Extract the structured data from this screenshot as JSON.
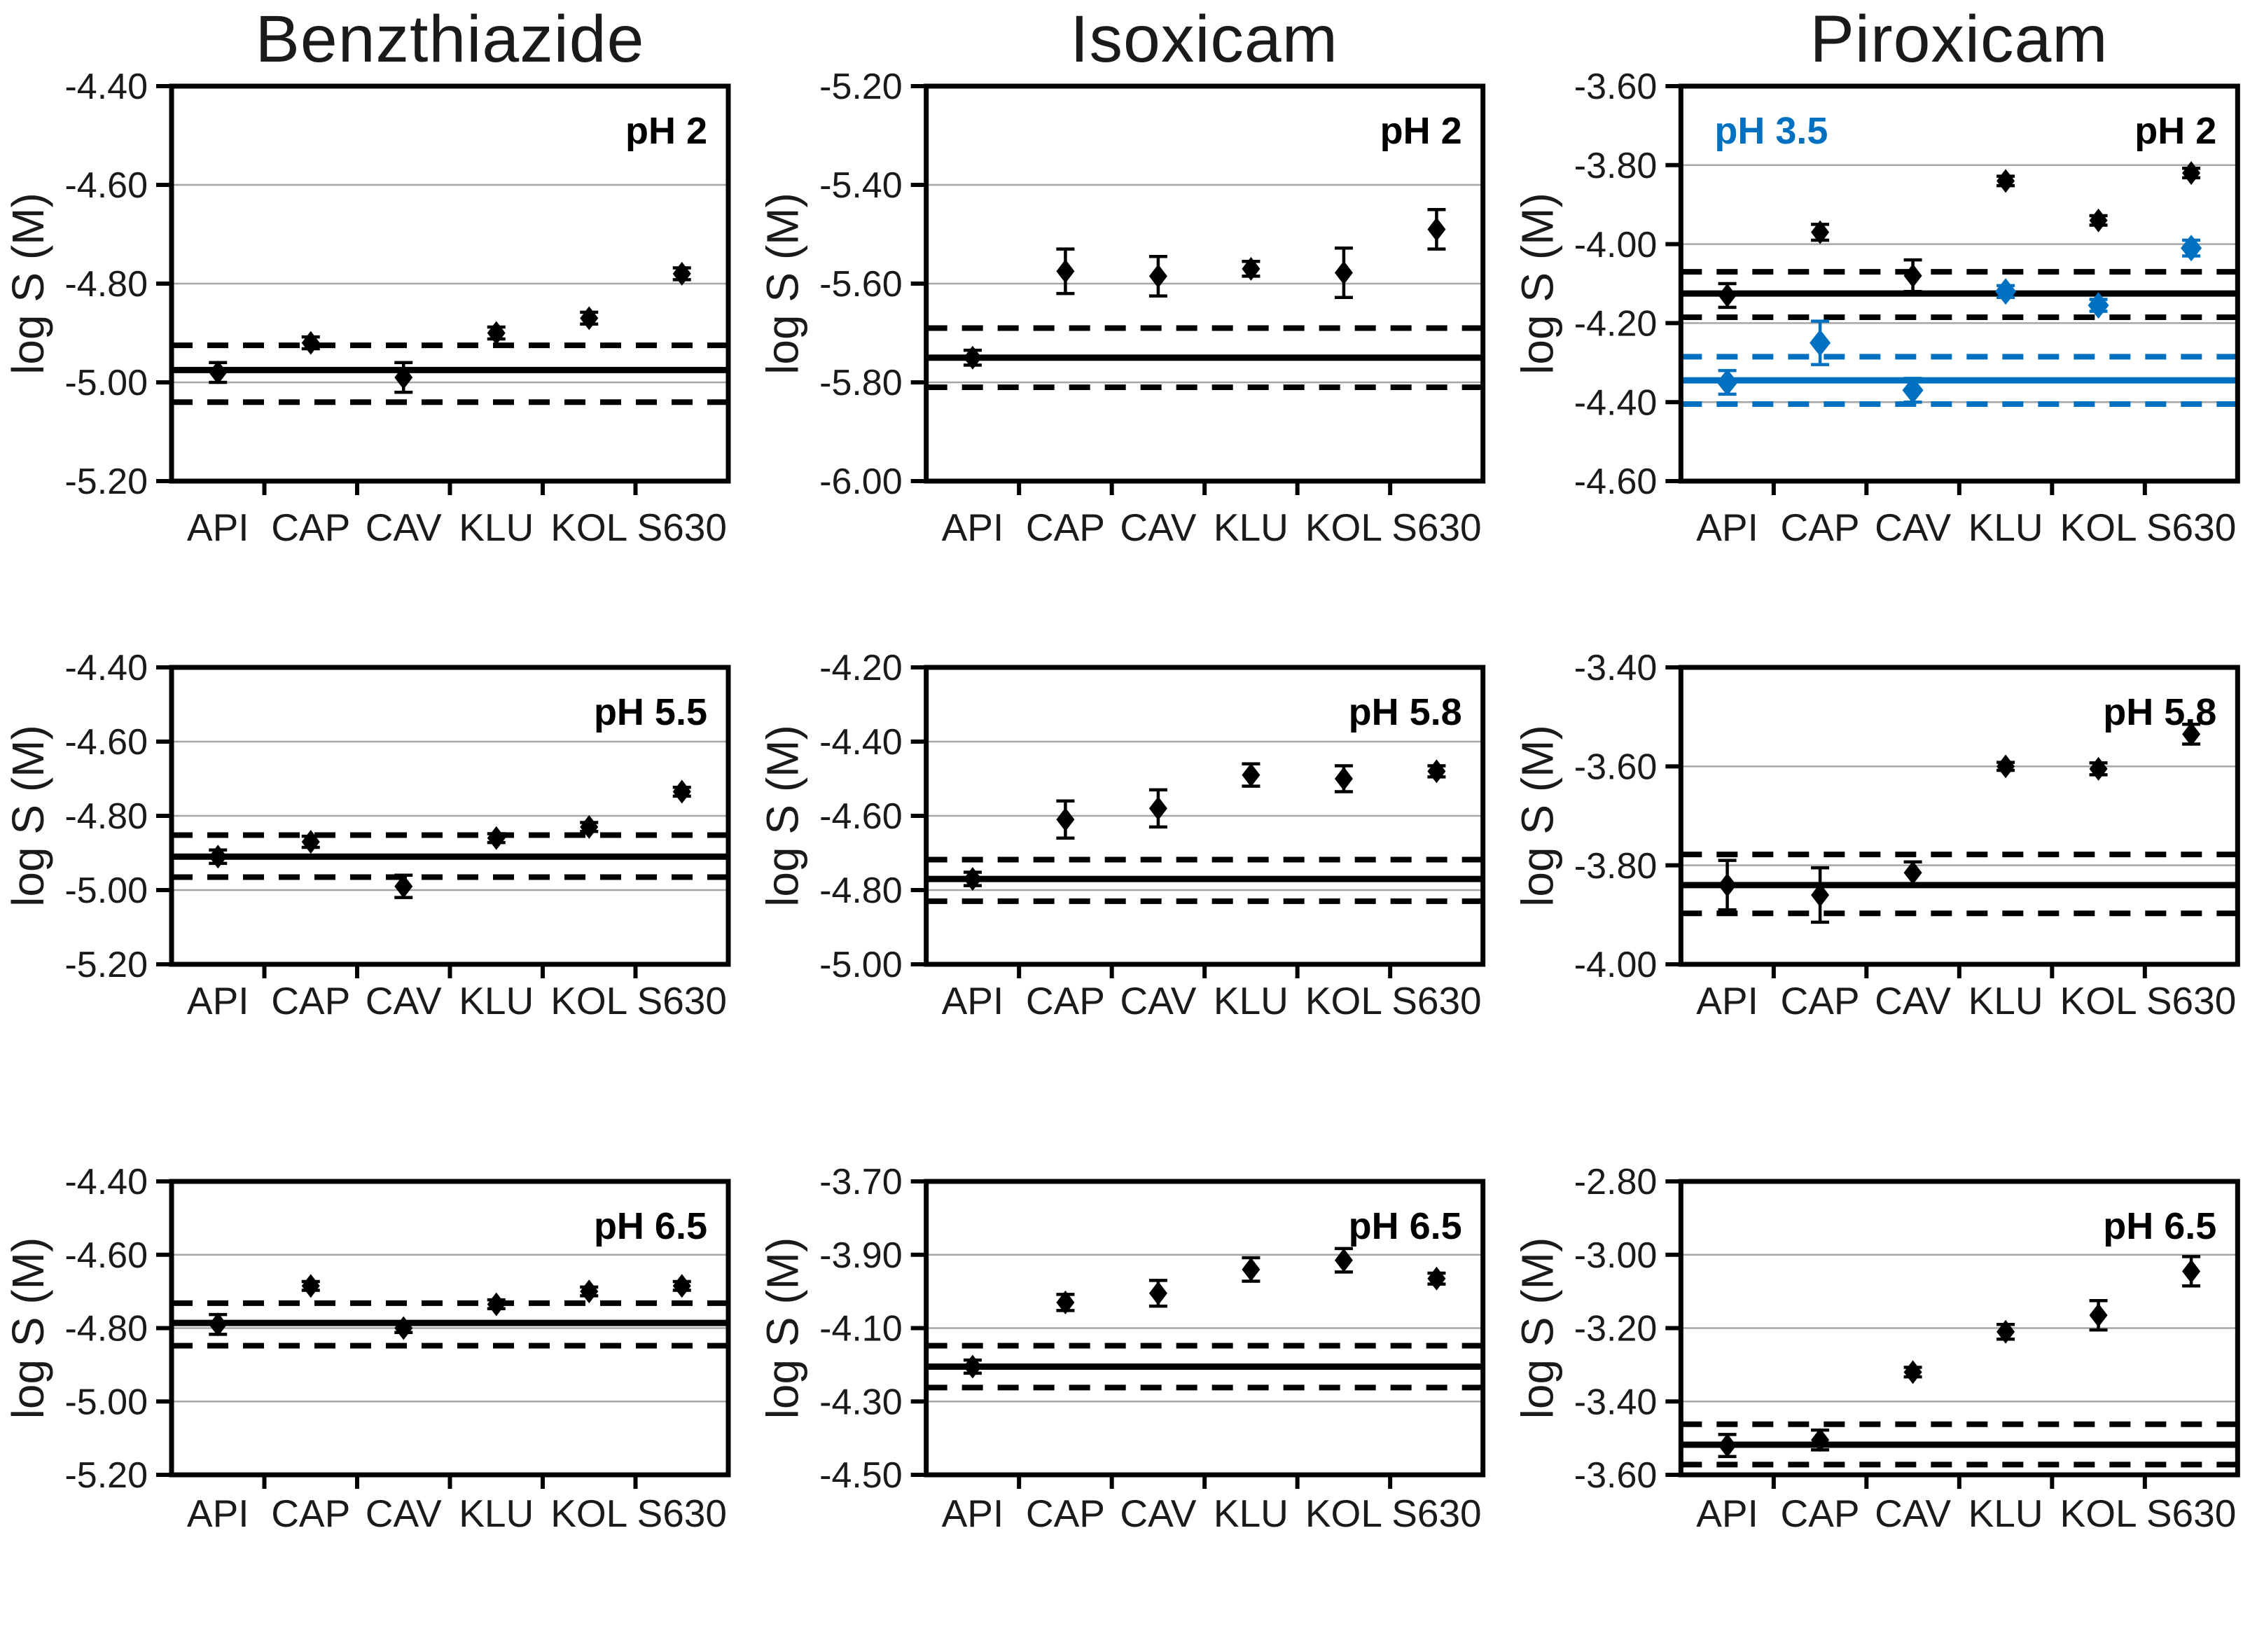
{
  "figure": {
    "description": "3x3 grid of equilibrium solubility scatter plots",
    "background": "#ffffff"
  },
  "columns": [
    "Benzthiazide",
    "Isoxicam",
    "Piroxicam"
  ],
  "ylabel": "log S (M)",
  "categories": [
    "API",
    "CAP",
    "CAV",
    "KLU",
    "KOL",
    "S630"
  ],
  "colors": {
    "black": "#000000",
    "blue": "#0070C0",
    "grid": "#a6a6a6",
    "frame": "#000000"
  },
  "chart_data": [
    {
      "id": "benzthiazide-ph2",
      "type": "scatter",
      "col": 0,
      "row": 0,
      "title": "Benzthiazide",
      "ylabel": "log S (M)",
      "ylim": [
        -5.2,
        -4.4
      ],
      "yticks": [
        -4.4,
        -4.6,
        -4.8,
        -5.0,
        -5.2
      ],
      "categories": [
        "API",
        "CAP",
        "CAV",
        "KLU",
        "KOL",
        "S630"
      ],
      "ph_labels": [
        {
          "text": "pH 2",
          "color": "#000000",
          "position": "top-right"
        }
      ],
      "series": [
        {
          "name": "pH 2",
          "color": "#000000",
          "values": [
            -4.98,
            -4.92,
            -4.99,
            -4.9,
            -4.87,
            -4.78
          ],
          "errors": [
            0.02,
            0.012,
            0.03,
            0.012,
            0.012,
            0.012
          ],
          "ref_solid": -4.975,
          "ref_dashed": [
            -4.925,
            -5.04
          ]
        }
      ]
    },
    {
      "id": "isoxicam-ph2",
      "type": "scatter",
      "col": 1,
      "row": 0,
      "title": "Isoxicam",
      "ylabel": "log S (M)",
      "ylim": [
        -6.0,
        -5.2
      ],
      "yticks": [
        -5.2,
        -5.4,
        -5.6,
        -5.8,
        -6.0
      ],
      "categories": [
        "API",
        "CAP",
        "CAV",
        "KLU",
        "KOL",
        "S630"
      ],
      "ph_labels": [
        {
          "text": "pH 2",
          "color": "#000000",
          "position": "top-right"
        }
      ],
      "series": [
        {
          "name": "pH 2",
          "color": "#000000",
          "values": [
            -5.75,
            -5.575,
            -5.585,
            -5.57,
            -5.578,
            -5.49
          ],
          "errors": [
            0.015,
            0.045,
            0.04,
            0.015,
            0.05,
            0.04
          ],
          "ref_solid": -5.75,
          "ref_dashed": [
            -5.69,
            -5.81
          ]
        }
      ]
    },
    {
      "id": "piroxicam-ph2-ph35",
      "type": "scatter",
      "col": 2,
      "row": 0,
      "title": "Piroxicam",
      "ylabel": "log S (M)",
      "ylim": [
        -4.6,
        -3.6
      ],
      "yticks": [
        -3.6,
        -3.8,
        -4.0,
        -4.2,
        -4.4,
        -4.6
      ],
      "categories": [
        "API",
        "CAP",
        "CAV",
        "KLU",
        "KOL",
        "S630"
      ],
      "ph_labels": [
        {
          "text": "pH 3.5",
          "color": "#0070C0",
          "position": "top-left"
        },
        {
          "text": "pH 2",
          "color": "#000000",
          "position": "top-right"
        }
      ],
      "series": [
        {
          "name": "pH 2",
          "color": "#000000",
          "values": [
            -4.13,
            -3.97,
            -4.08,
            -3.84,
            -3.94,
            -3.82
          ],
          "errors": [
            0.03,
            0.02,
            0.04,
            0.012,
            0.012,
            0.012
          ],
          "ref_solid": -4.125,
          "ref_dashed": [
            -4.07,
            -4.185
          ]
        },
        {
          "name": "pH 3.5",
          "color": "#0070C0",
          "values": [
            -4.35,
            -4.25,
            -4.37,
            -4.12,
            -4.155,
            -4.01
          ],
          "errors": [
            0.03,
            0.055,
            0.03,
            0.015,
            0.015,
            0.02
          ],
          "ref_solid": -4.345,
          "ref_dashed": [
            -4.285,
            -4.405
          ]
        }
      ]
    },
    {
      "id": "benzthiazide-ph55",
      "type": "scatter",
      "col": 0,
      "row": 1,
      "title": "Benzthiazide",
      "ylabel": "log S (M)",
      "ylim": [
        -5.2,
        -4.4
      ],
      "yticks": [
        -4.4,
        -4.6,
        -4.8,
        -5.0,
        -5.2
      ],
      "categories": [
        "API",
        "CAP",
        "CAV",
        "KLU",
        "KOL",
        "S630"
      ],
      "ph_labels": [
        {
          "text": "pH 5.5",
          "color": "#000000",
          "position": "top-right"
        }
      ],
      "series": [
        {
          "name": "pH 5.5",
          "color": "#000000",
          "values": [
            -4.91,
            -4.87,
            -4.99,
            -4.86,
            -4.83,
            -4.735
          ],
          "errors": [
            0.018,
            0.015,
            0.03,
            0.012,
            0.012,
            0.012
          ],
          "ref_solid": -4.91,
          "ref_dashed": [
            -4.852,
            -4.965
          ]
        }
      ]
    },
    {
      "id": "isoxicam-ph58",
      "type": "scatter",
      "col": 1,
      "row": 1,
      "title": "Isoxicam",
      "ylabel": "log S (M)",
      "ylim": [
        -5.0,
        -4.2
      ],
      "yticks": [
        -4.2,
        -4.4,
        -4.6,
        -4.8,
        -5.0
      ],
      "categories": [
        "API",
        "CAP",
        "CAV",
        "KLU",
        "KOL",
        "S630"
      ],
      "ph_labels": [
        {
          "text": "pH 5.8",
          "color": "#000000",
          "position": "top-right"
        }
      ],
      "series": [
        {
          "name": "pH 5.8",
          "color": "#000000",
          "values": [
            -4.77,
            -4.61,
            -4.58,
            -4.49,
            -4.5,
            -4.48
          ],
          "errors": [
            0.018,
            0.05,
            0.05,
            0.03,
            0.035,
            0.015
          ],
          "ref_solid": -4.77,
          "ref_dashed": [
            -4.718,
            -4.83
          ]
        }
      ]
    },
    {
      "id": "piroxicam-ph58",
      "type": "scatter",
      "col": 2,
      "row": 1,
      "title": "Piroxicam",
      "ylabel": "log S (M)",
      "ylim": [
        -4.0,
        -3.4
      ],
      "yticks": [
        -3.4,
        -3.6,
        -3.8,
        -4.0
      ],
      "categories": [
        "API",
        "CAP",
        "CAV",
        "KLU",
        "KOL",
        "S630"
      ],
      "ph_labels": [
        {
          "text": "pH 5.8",
          "color": "#000000",
          "position": "top-right"
        }
      ],
      "series": [
        {
          "name": "pH 5.8",
          "color": "#000000",
          "values": [
            -3.84,
            -3.86,
            -3.815,
            -3.6,
            -3.605,
            -3.535
          ],
          "errors": [
            0.05,
            0.055,
            0.022,
            0.008,
            0.012,
            0.02
          ],
          "ref_solid": -3.84,
          "ref_dashed": [
            -3.778,
            -3.897
          ]
        }
      ]
    },
    {
      "id": "benzthiazide-ph65",
      "type": "scatter",
      "col": 0,
      "row": 2,
      "title": "Benzthiazide",
      "ylabel": "log S (M)",
      "ylim": [
        -5.2,
        -4.4
      ],
      "yticks": [
        -4.4,
        -4.6,
        -4.8,
        -5.0,
        -5.2
      ],
      "categories": [
        "API",
        "CAP",
        "CAV",
        "KLU",
        "KOL",
        "S630"
      ],
      "ph_labels": [
        {
          "text": "pH 6.5",
          "color": "#000000",
          "position": "top-right"
        }
      ],
      "series": [
        {
          "name": "pH 6.5",
          "color": "#000000",
          "values": [
            -4.79,
            -4.685,
            -4.8,
            -4.735,
            -4.7,
            -4.685
          ],
          "errors": [
            0.027,
            0.012,
            0.012,
            0.012,
            0.012,
            0.012
          ],
          "ref_solid": -4.786,
          "ref_dashed": [
            -4.732,
            -4.848
          ]
        }
      ]
    },
    {
      "id": "isoxicam-ph65",
      "type": "scatter",
      "col": 1,
      "row": 2,
      "title": "Isoxicam",
      "ylabel": "log S (M)",
      "ylim": [
        -4.5,
        -3.7
      ],
      "yticks": [
        -3.7,
        -3.9,
        -4.1,
        -4.3,
        -4.5
      ],
      "categories": [
        "API",
        "CAP",
        "CAV",
        "KLU",
        "KOL",
        "S630"
      ],
      "ph_labels": [
        {
          "text": "pH 6.5",
          "color": "#000000",
          "position": "top-right"
        }
      ],
      "series": [
        {
          "name": "pH 6.5",
          "color": "#000000",
          "values": [
            -4.205,
            -4.03,
            -4.005,
            -3.94,
            -3.915,
            -3.965
          ],
          "errors": [
            0.018,
            0.022,
            0.035,
            0.032,
            0.032,
            0.015
          ],
          "ref_solid": -4.205,
          "ref_dashed": [
            -4.148,
            -4.262
          ]
        }
      ]
    },
    {
      "id": "piroxicam-ph65",
      "type": "scatter",
      "col": 2,
      "row": 2,
      "title": "Piroxicam",
      "ylabel": "log S (M)",
      "ylim": [
        -3.6,
        -2.8
      ],
      "yticks": [
        -2.8,
        -3.0,
        -3.2,
        -3.4,
        -3.6
      ],
      "categories": [
        "API",
        "CAP",
        "CAV",
        "KLU",
        "KOL",
        "S630"
      ],
      "ph_labels": [
        {
          "text": "pH 6.5",
          "color": "#000000",
          "position": "top-right"
        }
      ],
      "series": [
        {
          "name": "pH 6.5",
          "color": "#000000",
          "values": [
            -3.52,
            -3.505,
            -3.32,
            -3.21,
            -3.165,
            -3.045
          ],
          "errors": [
            0.03,
            0.027,
            0.013,
            0.02,
            0.04,
            0.04
          ],
          "ref_solid": -3.518,
          "ref_dashed": [
            -3.462,
            -3.572
          ]
        }
      ]
    }
  ]
}
